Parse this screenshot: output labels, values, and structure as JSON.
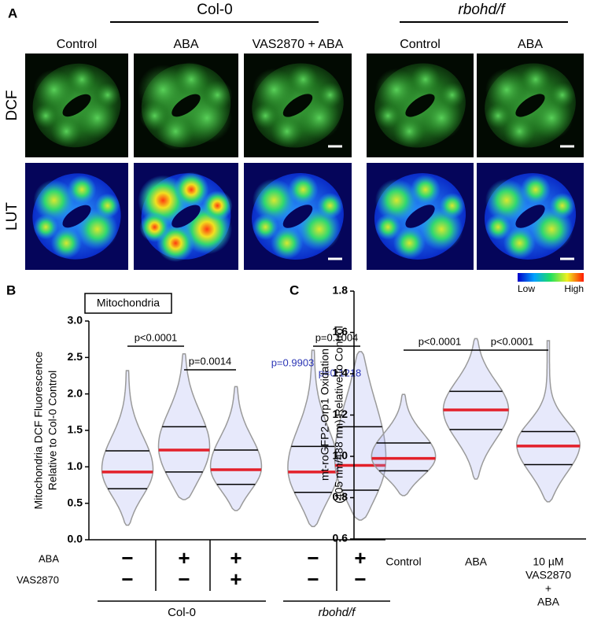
{
  "figure": {
    "panel_labels": [
      "A",
      "B",
      "C"
    ],
    "panel_a": {
      "genotypes": [
        "Col-0",
        "rbohd/f"
      ],
      "columns": [
        "Control",
        "ABA",
        "VAS2870 + ABA",
        "Control",
        "ABA"
      ],
      "rows": [
        "DCF",
        "LUT"
      ],
      "colorbar": {
        "low": "Low",
        "high": "High"
      }
    }
  },
  "chart_data": [
    {
      "type": "violin",
      "inset_label": "Mitochondria",
      "y_label": [
        "Mitochondria DCF Fluorescence",
        "Relative to Col-0 Control"
      ],
      "ylim": [
        0,
        3
      ],
      "yticks": [
        {
          "value": 0,
          "label": "0.0"
        },
        0.5,
        {
          "value": 1,
          "label": "1.0"
        },
        1.5,
        {
          "value": 2,
          "label": "2.0"
        },
        2.5,
        {
          "value": 3,
          "label": "3.0"
        }
      ],
      "groups": [
        {
          "min": 0.2,
          "q1": 0.7,
          "median": 0.93,
          "q3": 1.22,
          "max": 2.32
        },
        {
          "min": 0.55,
          "q1": 0.93,
          "median": 1.23,
          "q3": 1.55,
          "max": 2.55
        },
        {
          "min": 0.4,
          "q1": 0.76,
          "median": 0.96,
          "q3": 1.23,
          "max": 2.1
        },
        {
          "min": 0.18,
          "q1": 0.65,
          "median": 0.93,
          "q3": 1.28,
          "max": 2.6
        },
        {
          "min": 0.27,
          "q1": 0.68,
          "median": 1.02,
          "q3": 1.55,
          "max": 2.58
        }
      ],
      "comparisons": [
        {
          "groups": [
            0,
            1
          ],
          "label": "p<0.0001"
        },
        {
          "groups": [
            1,
            2
          ],
          "label": "p=0.0014"
        },
        {
          "groups": [
            3,
            4
          ],
          "label": "p=0.1004"
        }
      ],
      "annotations": [
        {
          "label": "p=0.9903",
          "color": "#2b35b5"
        },
        {
          "label": "p=0.1218",
          "color": "#2b35b5"
        }
      ],
      "conditions": [
        {
          "name": "ABA",
          "signs": [
            "−",
            "+",
            "+",
            "−",
            "+"
          ]
        },
        {
          "name": "VAS2870",
          "signs": [
            "−",
            "−",
            "+",
            "−",
            "−"
          ]
        }
      ],
      "genotypes": [
        {
          "name": "Col-0",
          "groups": [
            0,
            2
          ],
          "italic": false
        },
        {
          "name": "rbohd/f",
          "groups": [
            3,
            4
          ],
          "italic": true
        }
      ],
      "median_color": "#e3202a",
      "quartile_color": "#000000",
      "violin_color": "#9a9a9a",
      "point_color": "#9fa8ee"
    },
    {
      "type": "violin",
      "y_label": [
        "mt-roGFP2-Orp1 Oxidation",
        "(405 nm/488 nm) Relative to Control"
      ],
      "ylim": [
        0.6,
        1.8
      ],
      "yticks": [
        0.6,
        0.8,
        {
          "value": 1,
          "label": "1.0"
        },
        1.2,
        1.4,
        1.6,
        1.8
      ],
      "categories": [
        [
          "Control"
        ],
        [
          "ABA"
        ],
        [
          "10 µM",
          "VAS2870",
          "+",
          "ABA"
        ]
      ],
      "groups": [
        {
          "min": 0.81,
          "q1": 0.93,
          "median": 0.99,
          "q3": 1.065,
          "max": 1.3
        },
        {
          "min": 0.89,
          "q1": 1.13,
          "median": 1.225,
          "q3": 1.315,
          "max": 1.57
        },
        {
          "min": 0.78,
          "q1": 0.96,
          "median": 1.05,
          "q3": 1.12,
          "max": 1.56
        }
      ],
      "comparisons": [
        {
          "groups": [
            0,
            1
          ],
          "label": "p<0.0001"
        },
        {
          "groups": [
            1,
            2
          ],
          "label": "p<0.0001"
        }
      ],
      "median_color": "#e3202a",
      "quartile_color": "#000000",
      "violin_color": "#9a9a9a",
      "point_color": "#9fa8ee"
    }
  ]
}
